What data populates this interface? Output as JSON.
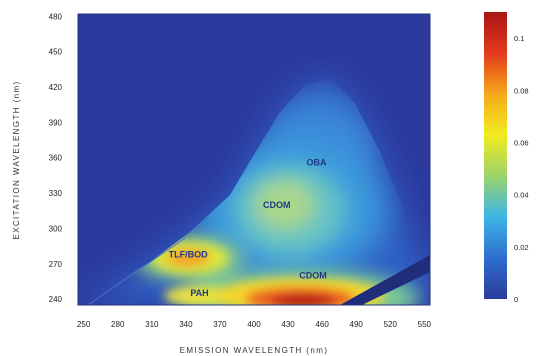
{
  "chart_data": {
    "type": "heatmap",
    "title": "",
    "xlabel": "EMISSION WAVELENGTH (nm)",
    "ylabel": "EXCITATION WAVELENGTH (nm)",
    "xlim": [
      245,
      555
    ],
    "ylim": [
      235,
      482
    ],
    "x_ticks": [
      250,
      280,
      310,
      340,
      370,
      400,
      430,
      460,
      490,
      520,
      550
    ],
    "y_ticks": [
      240,
      270,
      300,
      330,
      360,
      390,
      420,
      450,
      480
    ],
    "colorbar": {
      "min": 0,
      "max": 0.11,
      "ticks": [
        0,
        0.02,
        0.04,
        0.06,
        0.08,
        0.1
      ],
      "colors": [
        "#2b3a9c",
        "#2e6fcf",
        "#3db5e6",
        "#9bd36a",
        "#f2ec1d",
        "#f6a81c",
        "#e43a1c",
        "#a81512"
      ]
    },
    "annotations": [
      {
        "text": "OBA",
        "x": 455,
        "y": 356
      },
      {
        "text": "CDOM",
        "x": 420,
        "y": 320
      },
      {
        "text": "TLF/BOD",
        "x": 342,
        "y": 278
      },
      {
        "text": "CDOM",
        "x": 452,
        "y": 260
      },
      {
        "text": "PAH",
        "x": 352,
        "y": 245
      }
    ],
    "peaks": [
      {
        "x": 455,
        "y": 360,
        "value": 0.028
      },
      {
        "x": 420,
        "y": 320,
        "value": 0.045
      },
      {
        "x": 340,
        "y": 278,
        "value": 0.07
      },
      {
        "x": 450,
        "y": 245,
        "value": 0.1
      },
      {
        "x": 355,
        "y": 242,
        "value": 0.05
      }
    ]
  }
}
